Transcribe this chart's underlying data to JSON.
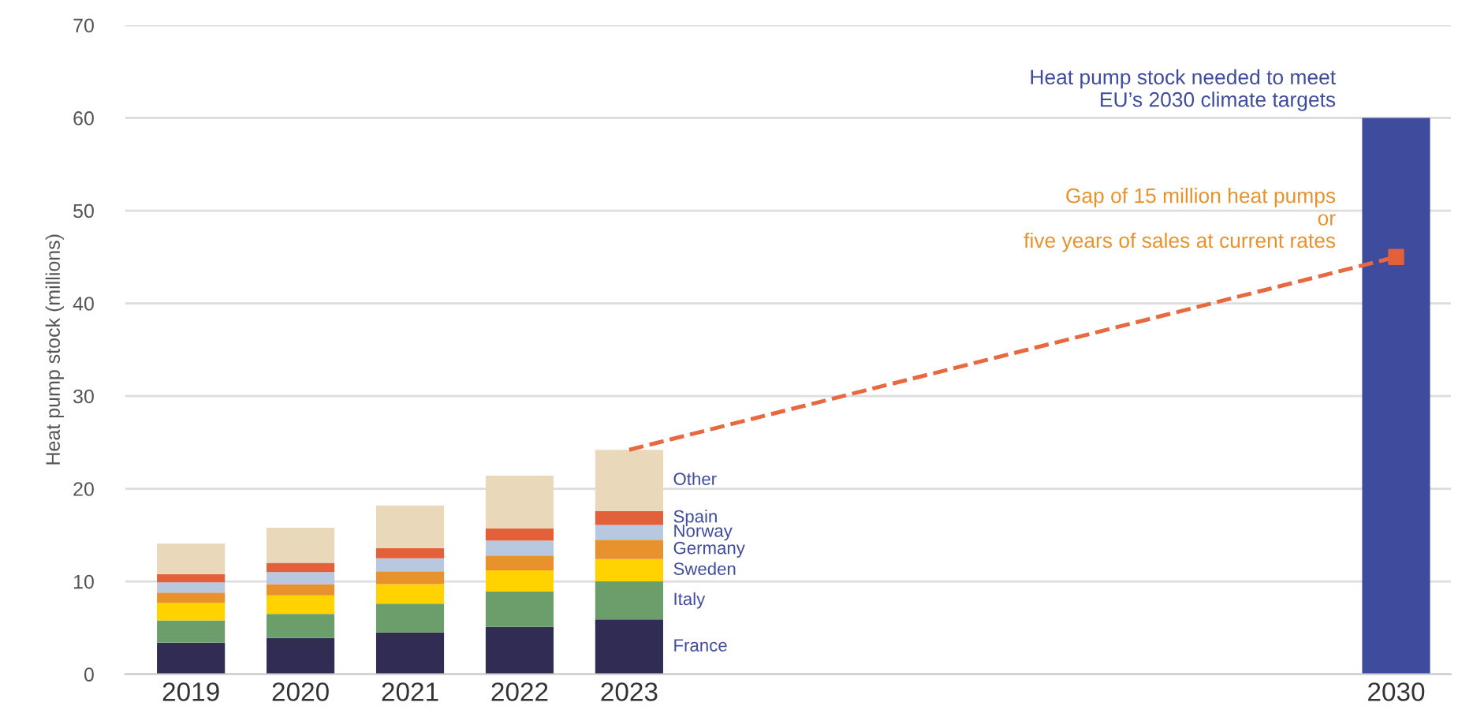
{
  "chart_data": {
    "type": "bar",
    "stacked": true,
    "ylabel": "Heat pump stock (millions)",
    "categories": [
      "2019",
      "2020",
      "2021",
      "2022",
      "2023",
      null,
      null,
      null,
      null,
      null,
      null,
      "2030"
    ],
    "series": [
      {
        "name": "France",
        "color": "#302c54",
        "values": [
          3.4,
          3.9,
          4.5,
          5.1,
          5.9,
          null,
          null,
          null,
          null,
          null,
          null,
          null
        ]
      },
      {
        "name": "Italy",
        "color": "#6b9e6b",
        "values": [
          2.4,
          2.6,
          3.1,
          3.8,
          4.1,
          null,
          null,
          null,
          null,
          null,
          null,
          null
        ]
      },
      {
        "name": "Sweden",
        "color": "#ffd200",
        "values": [
          1.9,
          2.0,
          2.1,
          2.3,
          2.4,
          null,
          null,
          null,
          null,
          null,
          null,
          null
        ]
      },
      {
        "name": "Germany",
        "color": "#e8922e",
        "values": [
          1.1,
          1.2,
          1.4,
          1.6,
          2.1,
          null,
          null,
          null,
          null,
          null,
          null,
          null
        ]
      },
      {
        "name": "Norway",
        "color": "#b8c8e0",
        "values": [
          1.1,
          1.3,
          1.4,
          1.6,
          1.6,
          null,
          null,
          null,
          null,
          null,
          null,
          null
        ]
      },
      {
        "name": "Spain",
        "color": "#e2603a",
        "values": [
          0.9,
          1.0,
          1.1,
          1.3,
          1.5,
          null,
          null,
          null,
          null,
          null,
          null,
          null
        ]
      },
      {
        "name": "Other",
        "color": "#ead8bb",
        "values": [
          3.3,
          3.8,
          4.6,
          5.7,
          6.6,
          null,
          null,
          null,
          null,
          null,
          null,
          null
        ]
      },
      {
        "color": "#3f4c9e",
        "values": [
          null,
          null,
          null,
          null,
          null,
          null,
          null,
          null,
          null,
          null,
          null,
          60
        ]
      },
      {
        "type": "line",
        "color": "#e8683f",
        "line_style": "dashed",
        "marker": "none",
        "values": [
          null,
          null,
          null,
          null,
          24.2,
          null,
          null,
          null,
          null,
          null,
          null,
          45
        ]
      },
      {
        "type": "scatter",
        "color": "#e2603a",
        "marker": "square",
        "values": [
          null,
          null,
          null,
          null,
          null,
          null,
          null,
          null,
          null,
          null,
          null,
          45
        ]
      }
    ],
    "ylim": [
      0,
      70
    ],
    "yticks": [
      0,
      10,
      20,
      30,
      40,
      50,
      60,
      70
    ],
    "grid": "y",
    "legend": false,
    "annotations": [
      {
        "text": "Heat pump stock needed to meet\nEU’s 2030 climate targets",
        "x": "2030",
        "y": 60
      },
      {
        "text": "Gap of 15 million heat pumps\nor\nfive years of sales at current rates",
        "x": "2030",
        "y": 45
      }
    ]
  }
}
